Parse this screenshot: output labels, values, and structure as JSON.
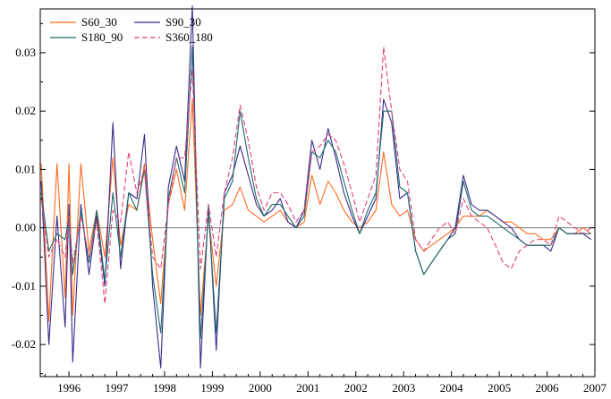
{
  "chart_data": {
    "type": "line",
    "title": "",
    "xlabel": "",
    "ylabel": "",
    "xlim": [
      1995.4,
      2007.0
    ],
    "ylim": [
      -0.0255,
      0.0375
    ],
    "grid": false,
    "legend_placement": "top-left",
    "x_ticks": [
      1996,
      1997,
      1998,
      1999,
      2000,
      2001,
      2002,
      2003,
      2004,
      2005,
      2006,
      2007
    ],
    "x_tick_labels": [
      "1996",
      "1997",
      "1998",
      "1999",
      "2000",
      "2001",
      "2002",
      "2003",
      "2004",
      "2005",
      "2006",
      "2007"
    ],
    "y_ticks": [
      -0.02,
      -0.01,
      0.0,
      0.01,
      0.02,
      0.03
    ],
    "y_tick_labels": [
      "-0.02",
      "-0.01",
      "0.00",
      "0.01",
      "0.02",
      "0.03"
    ],
    "zero_line": 0.0,
    "series": [
      {
        "name": "S60_30",
        "color": "#ff6a1f",
        "dash": "solid",
        "x": [
          1995.42,
          1995.58,
          1995.75,
          1995.92,
          1996.0,
          1996.08,
          1996.25,
          1996.42,
          1996.58,
          1996.75,
          1996.92,
          1997.08,
          1997.25,
          1997.42,
          1997.58,
          1997.75,
          1997.92,
          1998.08,
          1998.25,
          1998.42,
          1998.58,
          1998.75,
          1998.92,
          1999.08,
          1999.25,
          1999.42,
          1999.58,
          1999.75,
          1999.92,
          2000.08,
          2000.25,
          2000.42,
          2000.58,
          2000.75,
          2000.92,
          2001.08,
          2001.25,
          2001.42,
          2001.58,
          2001.75,
          2001.92,
          2002.08,
          2002.25,
          2002.42,
          2002.58,
          2002.75,
          2002.92,
          2003.08,
          2003.25,
          2003.42,
          2003.58,
          2003.75,
          2003.92,
          2004.08,
          2004.25,
          2004.42,
          2004.58,
          2004.75,
          2004.92,
          2005.08,
          2005.25,
          2005.42,
          2005.58,
          2005.75,
          2005.92,
          2006.08,
          2006.25,
          2006.42,
          2006.58,
          2006.75,
          2006.92
        ],
        "values": [
          0.011,
          -0.016,
          0.011,
          -0.012,
          0.011,
          -0.015,
          0.011,
          -0.004,
          0.003,
          -0.005,
          0.012,
          -0.003,
          0.004,
          0.003,
          0.011,
          -0.002,
          -0.013,
          0.004,
          0.01,
          0.003,
          0.022,
          -0.015,
          0.002,
          -0.01,
          0.003,
          0.004,
          0.007,
          0.003,
          0.002,
          0.001,
          0.002,
          0.003,
          0.001,
          0.0,
          0.001,
          0.009,
          0.004,
          0.008,
          0.006,
          0.003,
          0.001,
          0.0,
          0.001,
          0.003,
          0.013,
          0.004,
          0.002,
          0.003,
          -0.002,
          -0.004,
          -0.003,
          -0.002,
          -0.001,
          0.0,
          0.002,
          0.002,
          0.002,
          0.003,
          0.002,
          0.001,
          0.001,
          0.0,
          -0.001,
          -0.001,
          -0.002,
          -0.002,
          0.0,
          -0.001,
          -0.001,
          0.0,
          -0.001
        ]
      },
      {
        "name": "S90_30",
        "color": "#3c2a8c",
        "dash": "solid",
        "x": [
          1995.42,
          1995.58,
          1995.75,
          1995.92,
          1996.0,
          1996.08,
          1996.25,
          1996.42,
          1996.58,
          1996.75,
          1996.92,
          1997.08,
          1997.25,
          1997.42,
          1997.58,
          1997.75,
          1997.92,
          1998.08,
          1998.25,
          1998.42,
          1998.58,
          1998.75,
          1998.92,
          1999.08,
          1999.25,
          1999.42,
          1999.58,
          1999.75,
          1999.92,
          2000.08,
          2000.25,
          2000.42,
          2000.58,
          2000.75,
          2000.92,
          2001.08,
          2001.25,
          2001.42,
          2001.58,
          2001.75,
          2001.92,
          2002.08,
          2002.25,
          2002.42,
          2002.58,
          2002.75,
          2002.92,
          2003.08,
          2003.25,
          2003.42,
          2003.58,
          2003.75,
          2003.92,
          2004.08,
          2004.25,
          2004.42,
          2004.58,
          2004.75,
          2004.92,
          2005.08,
          2005.25,
          2005.42,
          2005.58,
          2005.75,
          2005.92,
          2006.08,
          2006.25,
          2006.42,
          2006.58,
          2006.75,
          2006.92
        ],
        "values": [
          0.008,
          -0.02,
          0.002,
          -0.017,
          0.004,
          -0.023,
          0.004,
          -0.008,
          0.002,
          -0.01,
          0.018,
          -0.007,
          0.006,
          0.005,
          0.016,
          -0.01,
          -0.024,
          0.007,
          0.014,
          0.008,
          0.038,
          -0.024,
          0.004,
          -0.021,
          0.006,
          0.009,
          0.014,
          0.009,
          0.004,
          0.002,
          0.003,
          0.005,
          0.001,
          0.0,
          0.003,
          0.015,
          0.01,
          0.017,
          0.012,
          0.006,
          0.002,
          -0.001,
          0.002,
          0.005,
          0.022,
          0.018,
          0.005,
          0.006,
          -0.004,
          -0.008,
          -0.006,
          -0.004,
          -0.002,
          0.0,
          0.009,
          0.004,
          0.003,
          0.003,
          0.002,
          0.001,
          0.0,
          -0.002,
          -0.003,
          -0.003,
          -0.003,
          -0.004,
          0.0,
          -0.001,
          -0.001,
          -0.001,
          -0.002
        ]
      },
      {
        "name": "S180_90",
        "color": "#1f6b6b",
        "dash": "solid",
        "x": [
          1995.42,
          1995.58,
          1995.75,
          1995.92,
          1996.0,
          1996.08,
          1996.25,
          1996.42,
          1996.58,
          1996.75,
          1996.92,
          1997.08,
          1997.25,
          1997.42,
          1997.58,
          1997.75,
          1997.92,
          1998.08,
          1998.25,
          1998.42,
          1998.58,
          1998.75,
          1998.92,
          1999.08,
          1999.25,
          1999.42,
          1999.58,
          1999.75,
          1999.92,
          2000.08,
          2000.25,
          2000.42,
          2000.58,
          2000.75,
          2000.92,
          2001.08,
          2001.25,
          2001.42,
          2001.58,
          2001.75,
          2001.92,
          2002.08,
          2002.25,
          2002.42,
          2002.58,
          2002.75,
          2002.92,
          2003.08,
          2003.25,
          2003.42,
          2003.58,
          2003.75,
          2003.92,
          2004.08,
          2004.25,
          2004.42,
          2004.58,
          2004.75,
          2004.92,
          2005.08,
          2005.25,
          2005.42,
          2005.58,
          2005.75,
          2005.92,
          2006.08,
          2006.25,
          2006.42,
          2006.58,
          2006.75,
          2006.92
        ],
        "values": [
          0.006,
          -0.004,
          -0.001,
          -0.002,
          0.002,
          -0.008,
          0.003,
          -0.006,
          0.003,
          -0.009,
          0.006,
          -0.005,
          0.006,
          0.003,
          0.01,
          -0.008,
          -0.018,
          0.005,
          0.012,
          0.006,
          0.031,
          -0.019,
          0.003,
          -0.018,
          0.005,
          0.008,
          0.02,
          0.012,
          0.005,
          0.002,
          0.004,
          0.004,
          0.002,
          0.0,
          0.002,
          0.013,
          0.012,
          0.015,
          0.013,
          0.008,
          0.003,
          -0.001,
          0.003,
          0.006,
          0.02,
          0.02,
          0.007,
          0.006,
          -0.004,
          -0.008,
          -0.006,
          -0.004,
          -0.002,
          -0.001,
          0.008,
          0.003,
          0.002,
          0.002,
          0.001,
          0.0,
          -0.001,
          -0.002,
          -0.003,
          -0.003,
          -0.003,
          -0.003,
          0.0,
          -0.001,
          -0.001,
          -0.001,
          -0.001
        ]
      },
      {
        "name": "S360_180",
        "color": "#e0407a",
        "dash": "dashed",
        "x": [
          1995.42,
          1995.58,
          1995.75,
          1995.92,
          1996.0,
          1996.08,
          1996.25,
          1996.42,
          1996.58,
          1996.75,
          1996.92,
          1997.08,
          1997.25,
          1997.42,
          1997.58,
          1997.75,
          1997.92,
          1998.08,
          1998.25,
          1998.42,
          1998.58,
          1998.75,
          1998.92,
          1999.08,
          1999.25,
          1999.42,
          1999.58,
          1999.75,
          1999.92,
          2000.08,
          2000.25,
          2000.42,
          2000.58,
          2000.75,
          2000.92,
          2001.08,
          2001.25,
          2001.42,
          2001.58,
          2001.75,
          2001.92,
          2002.08,
          2002.25,
          2002.42,
          2002.58,
          2002.75,
          2002.92,
          2003.08,
          2003.25,
          2003.42,
          2003.58,
          2003.75,
          2003.92,
          2004.08,
          2004.25,
          2004.42,
          2004.58,
          2004.75,
          2004.92,
          2005.08,
          2005.25,
          2005.42,
          2005.58,
          2005.75,
          2005.92,
          2006.08,
          2006.25,
          2006.42,
          2006.58,
          2006.75,
          2006.92
        ],
        "values": [
          0.005,
          -0.005,
          -0.002,
          -0.005,
          0.002,
          -0.006,
          0.002,
          -0.005,
          0.001,
          -0.013,
          0.003,
          0.001,
          0.013,
          0.006,
          0.01,
          -0.005,
          -0.007,
          0.004,
          0.012,
          0.012,
          0.027,
          -0.007,
          0.004,
          -0.005,
          0.006,
          0.012,
          0.021,
          0.015,
          0.007,
          0.003,
          0.006,
          0.006,
          0.004,
          0.001,
          0.003,
          0.013,
          0.014,
          0.016,
          0.015,
          0.011,
          0.006,
          0.001,
          0.005,
          0.009,
          0.031,
          0.02,
          0.01,
          0.008,
          -0.002,
          -0.004,
          -0.002,
          0.0,
          0.001,
          -0.001,
          0.005,
          0.002,
          0.001,
          0.0,
          -0.003,
          -0.006,
          -0.007,
          -0.004,
          -0.003,
          -0.002,
          -0.002,
          -0.003,
          0.002,
          0.001,
          0.0,
          -0.001,
          0.0
        ]
      }
    ]
  }
}
